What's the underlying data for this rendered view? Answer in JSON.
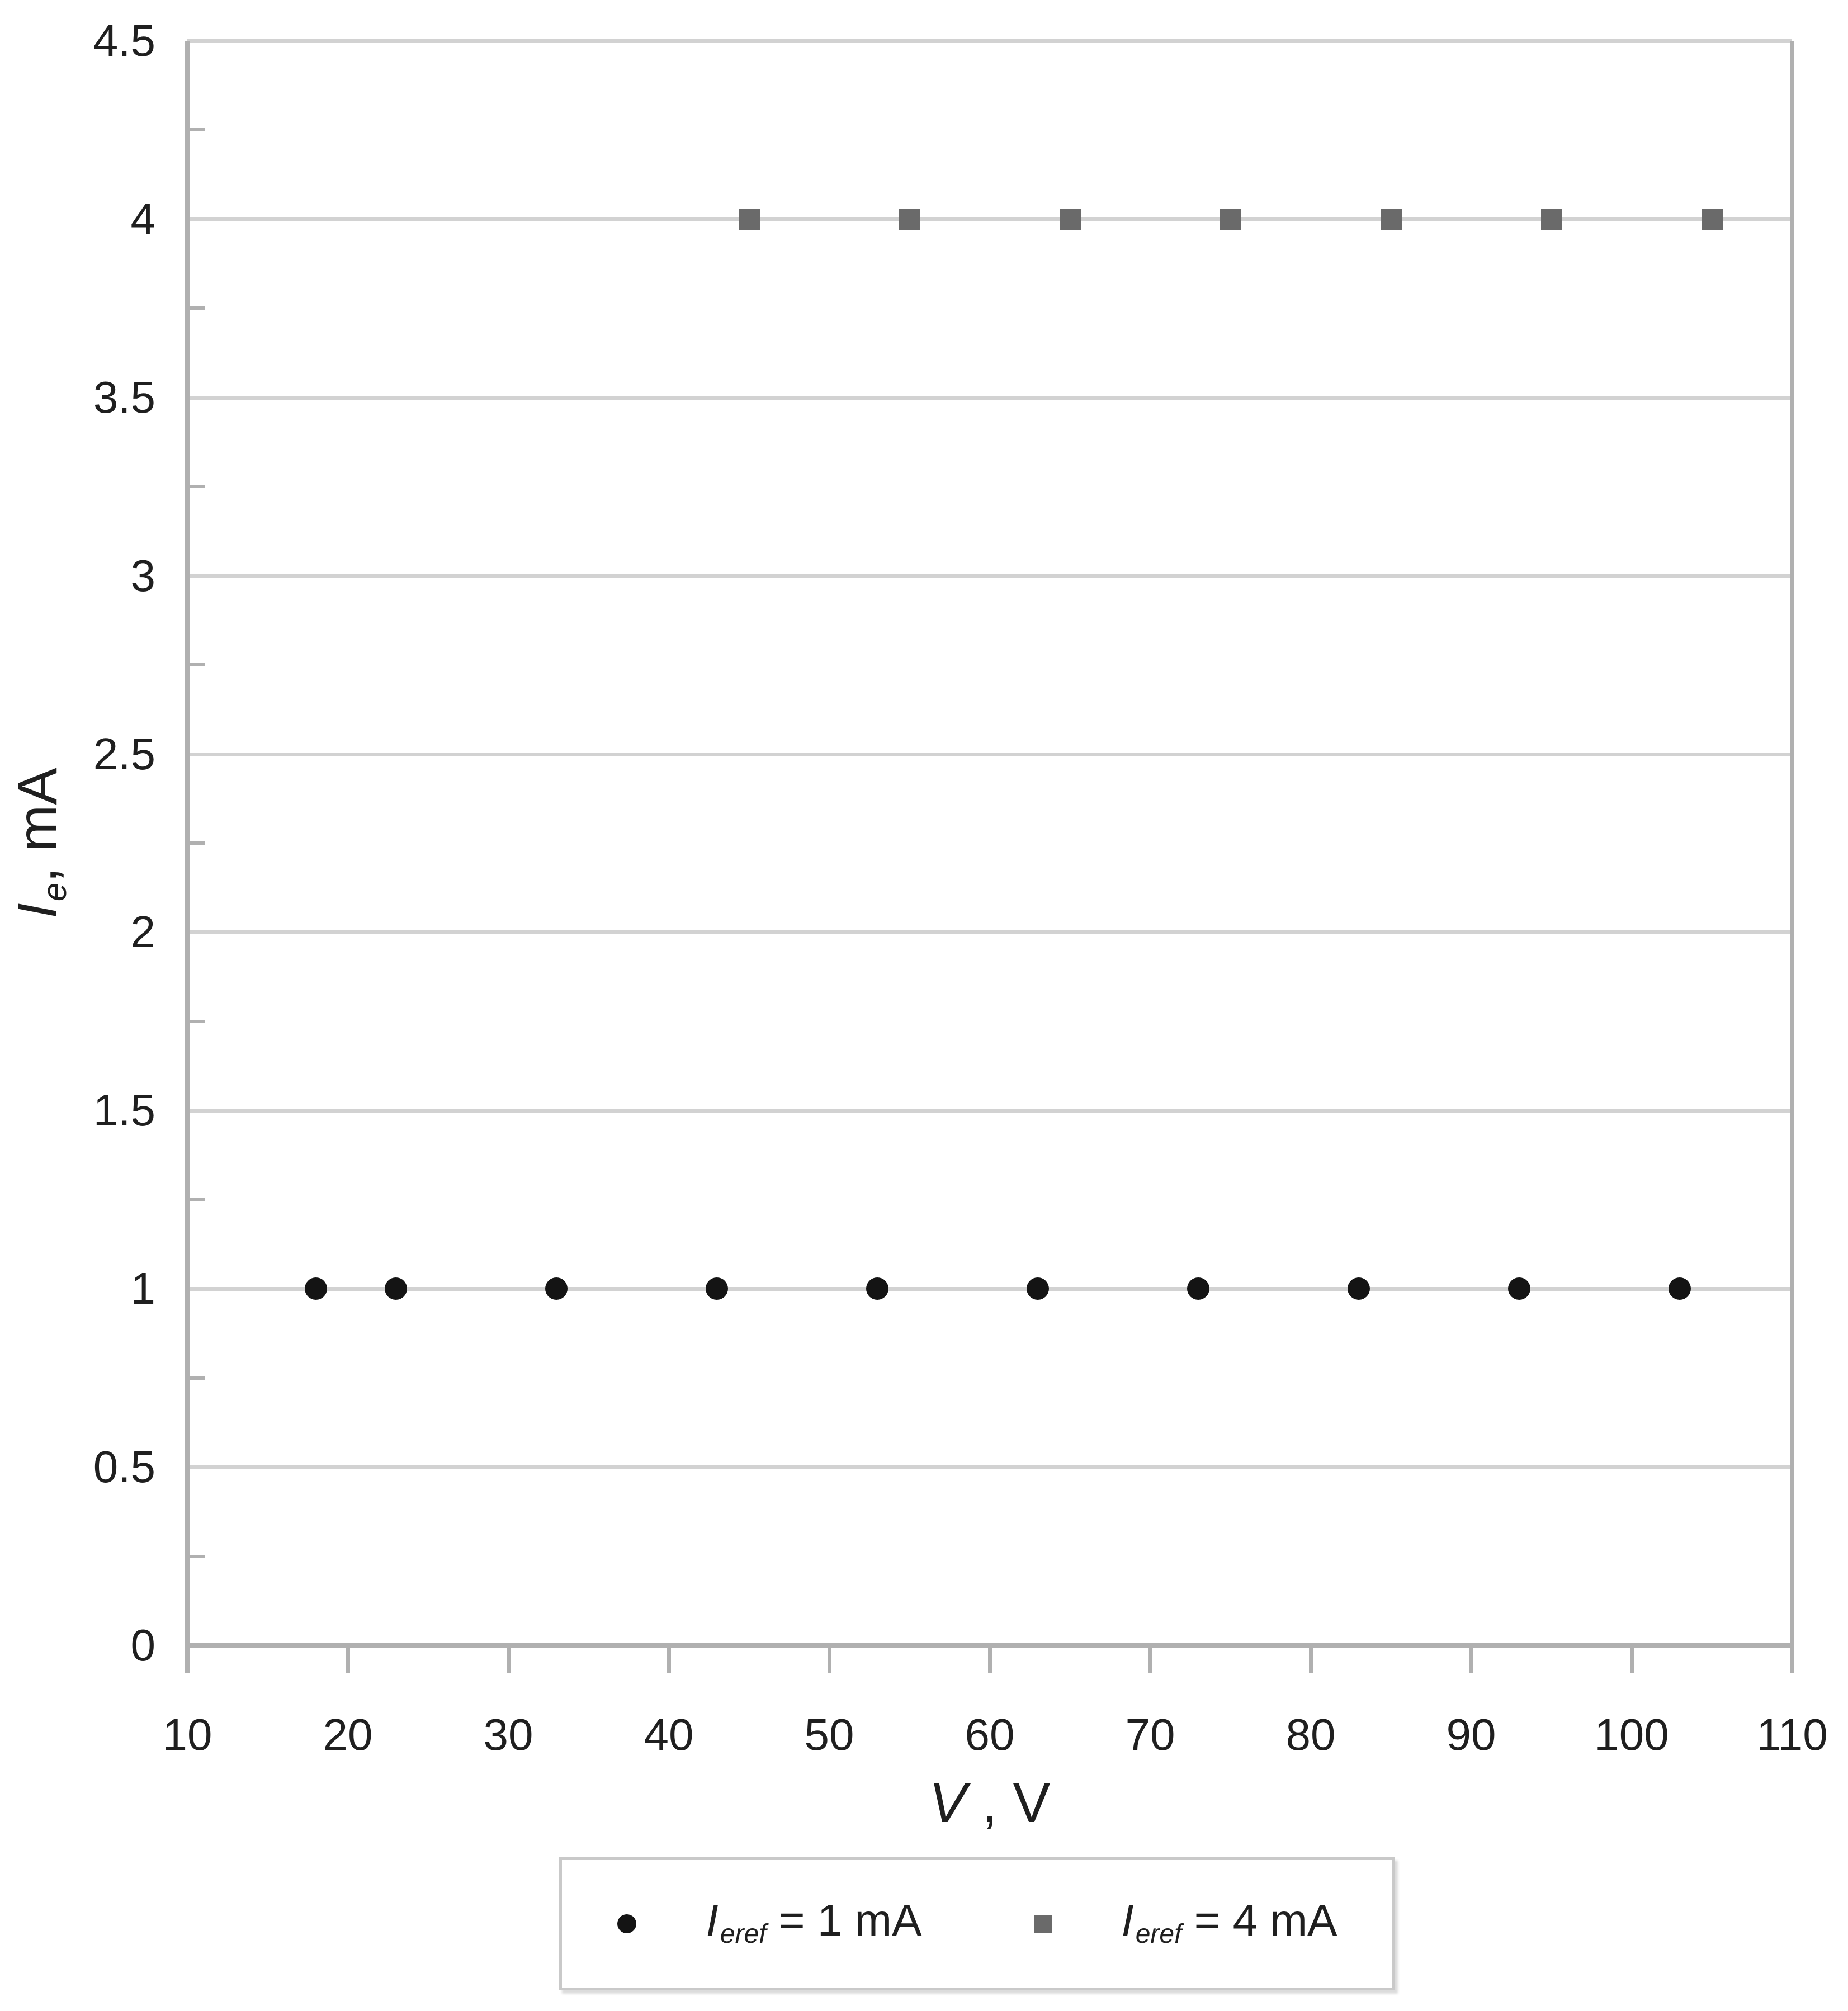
{
  "chart_data": {
    "type": "scatter",
    "title": "",
    "xlabel": "V , V",
    "ylabel": "Ie, mA",
    "x_axis": {
      "min": 10,
      "max": 110,
      "major_step": 10,
      "tick_labels": [
        "10",
        "20",
        "30",
        "40",
        "50",
        "60",
        "70",
        "80",
        "90",
        "100",
        "110"
      ]
    },
    "y_axis": {
      "min": 0,
      "max": 4.5,
      "major_step": 0.5,
      "minor_tick_step": 0.25,
      "tick_labels": [
        "0",
        "0.5",
        "1",
        "1.5",
        "2",
        "2.5",
        "3",
        "3.5",
        "4",
        "4.5"
      ]
    },
    "grid": "horizontal-major-only",
    "legend_position": "bottom-center",
    "series": [
      {
        "name": "Ieref = 1 mA",
        "marker": "circle",
        "color": "#141414",
        "points": [
          {
            "x": 18,
            "y": 1
          },
          {
            "x": 23,
            "y": 1
          },
          {
            "x": 33,
            "y": 1
          },
          {
            "x": 43,
            "y": 1
          },
          {
            "x": 53,
            "y": 1
          },
          {
            "x": 63,
            "y": 1
          },
          {
            "x": 73,
            "y": 1
          },
          {
            "x": 83,
            "y": 1
          },
          {
            "x": 93,
            "y": 1
          },
          {
            "x": 103,
            "y": 1
          }
        ]
      },
      {
        "name": "Ieref = 4 mA",
        "marker": "square",
        "color": "#6a6a6a",
        "points": [
          {
            "x": 45,
            "y": 4
          },
          {
            "x": 55,
            "y": 4
          },
          {
            "x": 65,
            "y": 4
          },
          {
            "x": 75,
            "y": 4
          },
          {
            "x": 85,
            "y": 4
          },
          {
            "x": 95,
            "y": 4
          },
          {
            "x": 105,
            "y": 4
          }
        ]
      }
    ]
  },
  "axis_titles": {
    "x": {
      "symbol": "V",
      "rest": " , V"
    },
    "y": {
      "symbol": "I",
      "subscript": "e",
      "rest": ", mA"
    }
  },
  "legend": {
    "entries": [
      {
        "symbol": "I",
        "subscript": "eref",
        "rest": " = 1 mA",
        "marker": "circle",
        "color": "#141414"
      },
      {
        "symbol": "I",
        "subscript": "eref",
        "rest": " = 4 mA",
        "marker": "square",
        "color": "#6a6a6a"
      }
    ]
  },
  "colors": {
    "gridline": "#d2d2d2",
    "axis": "#b0b0b0",
    "text": "#1f1f1f",
    "legend_border": "#c9c9c9"
  }
}
